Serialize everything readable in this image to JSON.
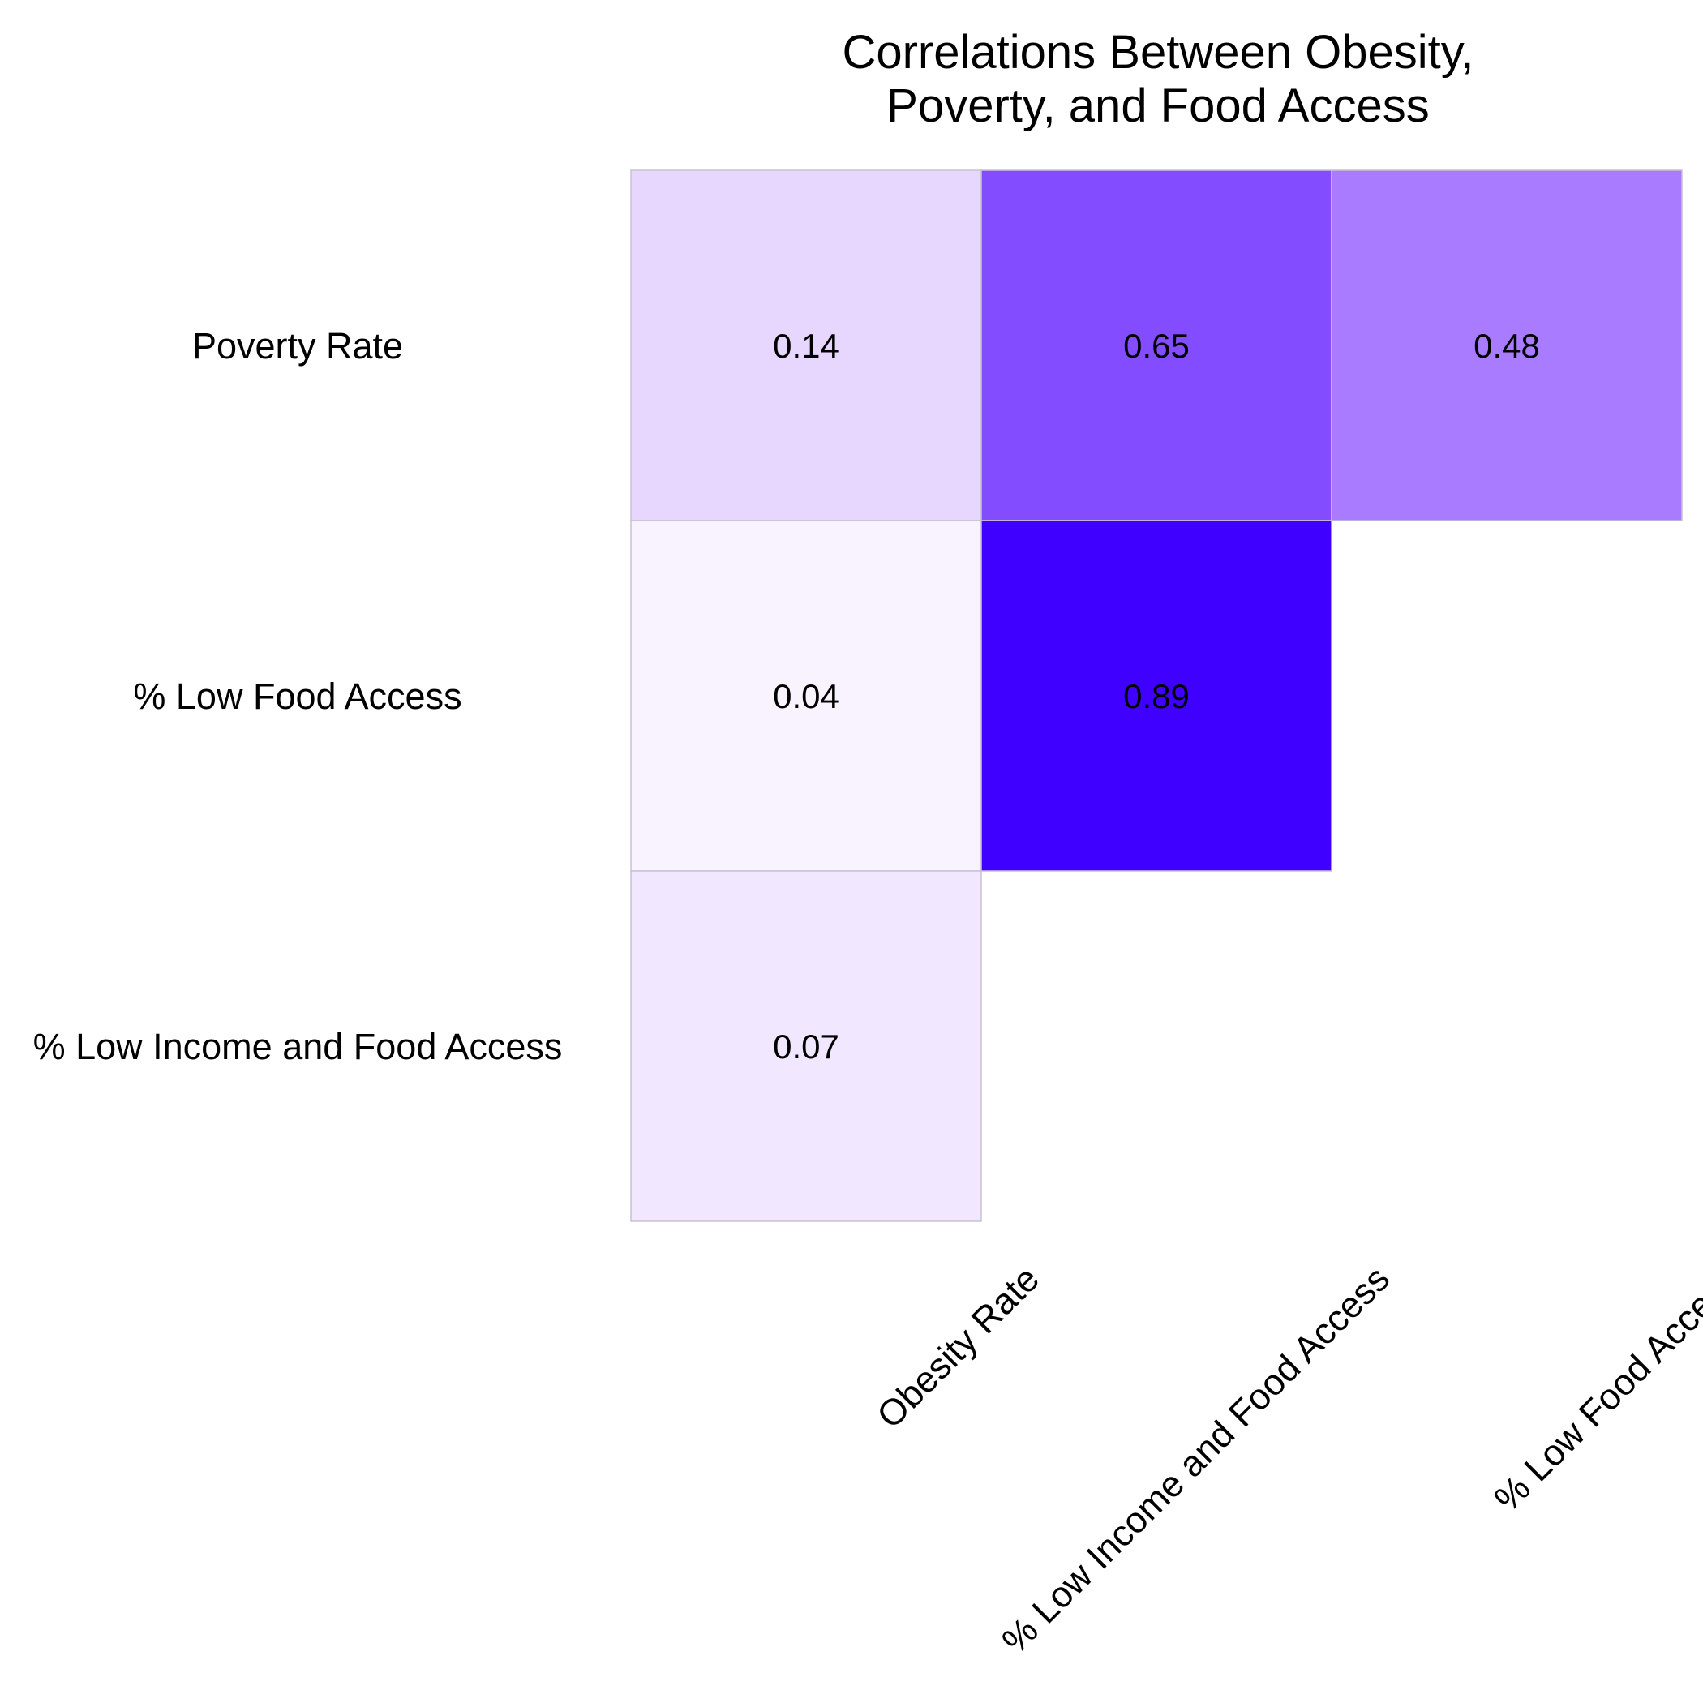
{
  "chart_data": {
    "type": "heatmap",
    "title_lines": [
      "Correlations Between Obesity,",
      "Poverty, and Food Access"
    ],
    "rows": [
      "Poverty Rate",
      "% Low Food Access",
      "% Low Income and Food Access"
    ],
    "columns": [
      "Obesity Rate",
      "% Low Income and Food Access",
      "% Low Food Access"
    ],
    "cells": [
      {
        "row": 0,
        "col": 0,
        "value": 0.14,
        "label": "0.14",
        "color": "#e7d7ff"
      },
      {
        "row": 0,
        "col": 1,
        "value": 0.65,
        "label": "0.65",
        "color": "#844cff"
      },
      {
        "row": 0,
        "col": 2,
        "value": 0.48,
        "label": "0.48",
        "color": "#a97bff"
      },
      {
        "row": 1,
        "col": 0,
        "value": 0.04,
        "label": "0.04",
        "color": "#f8f3ff"
      },
      {
        "row": 1,
        "col": 1,
        "value": 0.89,
        "label": "0.89",
        "color": "#3f00ff"
      },
      {
        "row": 2,
        "col": 0,
        "value": 0.07,
        "label": "0.07",
        "color": "#f1e7ff"
      }
    ],
    "colors": {
      "cell_border": "#c8c2d4",
      "text": "#000000",
      "background": "#ffffff"
    },
    "legend": "none",
    "grid": false
  }
}
